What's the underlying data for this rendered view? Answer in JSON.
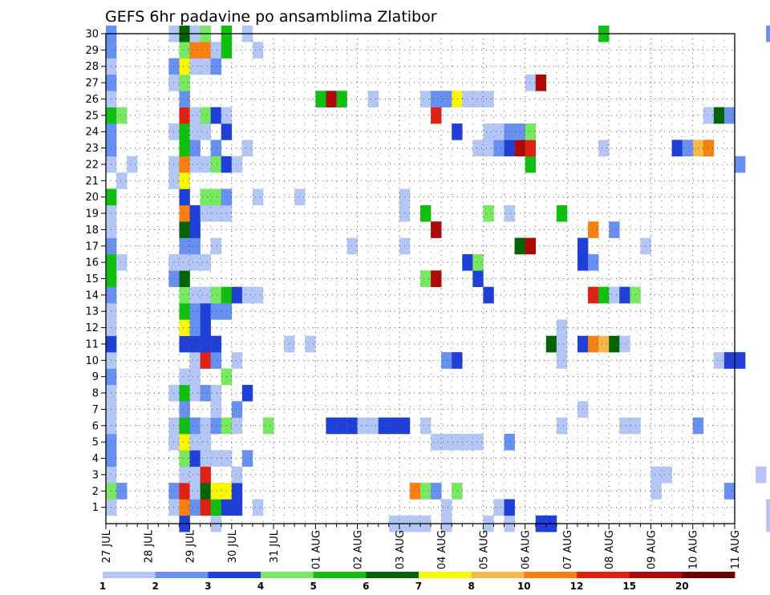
{
  "chart_data": {
    "type": "heatmap",
    "title": "GEFS 6hr padavine po ansamblima Zlatibor",
    "xlabel": "",
    "ylabel": "",
    "x_tick_labels": [
      "27 JUL",
      "28 JUL",
      "29 JUL",
      "30 JUL",
      "31 JUL",
      "01 AUG",
      "02 AUG",
      "03 AUG",
      "04 AUG",
      "05 AUG",
      "06 AUG",
      "07 AUG",
      "08 AUG",
      "09 AUG",
      "10 AUG",
      "11 AUG"
    ],
    "y_tick_labels": [
      "1",
      "2",
      "3",
      "4",
      "5",
      "6",
      "7",
      "8",
      "9",
      "10",
      "11",
      "12",
      "13",
      "14",
      "15",
      "16",
      "17",
      "18",
      "19",
      "20",
      "21",
      "22",
      "23",
      "24",
      "25",
      "26",
      "27",
      "28",
      "29",
      "30"
    ],
    "x_range": [
      "27 JUL 00",
      "11 AUG 00"
    ],
    "y_range": [
      0,
      30
    ],
    "time_step_hours": 6,
    "grid": "dotted",
    "colorbar": {
      "position": "bottom",
      "labels": [
        "1",
        "2",
        "3",
        "4",
        "5",
        "6",
        "7",
        "8",
        "10",
        "12",
        "15",
        "20"
      ],
      "colors": [
        "#b4c6f6",
        "#6890f0",
        "#1e3fd8",
        "#78e860",
        "#10c010",
        "#046404",
        "#f8f800",
        "#f8b848",
        "#f88010",
        "#e02010",
        "#b00808",
        "#700000"
      ]
    },
    "cells": [
      [
        0,
        1,
        1
      ],
      [
        0,
        2,
        4
      ],
      [
        0,
        3,
        1
      ],
      [
        0,
        4,
        2
      ],
      [
        0,
        5,
        2
      ],
      [
        0,
        6,
        1
      ],
      [
        0,
        7,
        1
      ],
      [
        0,
        8,
        1
      ],
      [
        0,
        9,
        2
      ],
      [
        0,
        10,
        1
      ],
      [
        0,
        11,
        3
      ],
      [
        0,
        12,
        1
      ],
      [
        0,
        13,
        1
      ],
      [
        0,
        14,
        2
      ],
      [
        0,
        15,
        5
      ],
      [
        0,
        16,
        5
      ],
      [
        0,
        17,
        2
      ],
      [
        0,
        18,
        1
      ],
      [
        0,
        19,
        1
      ],
      [
        0,
        20,
        5
      ],
      [
        0,
        22,
        1
      ],
      [
        0,
        23,
        2
      ],
      [
        0,
        24,
        2
      ],
      [
        0,
        25,
        5
      ],
      [
        0,
        26,
        1
      ],
      [
        0,
        27,
        2
      ],
      [
        0,
        28,
        1
      ],
      [
        0,
        29,
        2
      ],
      [
        0,
        30,
        2
      ],
      [
        1,
        2,
        2
      ],
      [
        1,
        16,
        1
      ],
      [
        1,
        21,
        1
      ],
      [
        1,
        25,
        4
      ],
      [
        2,
        22,
        1
      ],
      [
        6,
        30,
        1
      ],
      [
        6,
        28,
        2
      ],
      [
        6,
        27,
        1
      ],
      [
        6,
        24,
        1
      ],
      [
        6,
        22,
        1
      ],
      [
        6,
        21,
        1
      ],
      [
        6,
        15,
        2
      ],
      [
        6,
        16,
        1
      ],
      [
        6,
        8,
        1
      ],
      [
        6,
        6,
        1
      ],
      [
        6,
        5,
        1
      ],
      [
        6,
        2,
        2
      ],
      [
        6,
        1,
        1
      ],
      [
        7,
        0,
        3
      ],
      [
        7,
        1,
        10
      ],
      [
        7,
        2,
        13
      ],
      [
        7,
        3,
        1
      ],
      [
        7,
        4,
        4
      ],
      [
        7,
        5,
        7
      ],
      [
        7,
        6,
        5
      ],
      [
        7,
        7,
        2
      ],
      [
        7,
        8,
        5
      ],
      [
        7,
        9,
        1
      ],
      [
        7,
        11,
        3
      ],
      [
        7,
        12,
        7
      ],
      [
        7,
        13,
        5
      ],
      [
        7,
        14,
        4
      ],
      [
        7,
        15,
        6
      ],
      [
        7,
        16,
        1
      ],
      [
        7,
        17,
        2
      ],
      [
        7,
        18,
        6
      ],
      [
        7,
        19,
        10
      ],
      [
        7,
        20,
        3
      ],
      [
        7,
        21,
        7
      ],
      [
        7,
        22,
        10
      ],
      [
        7,
        23,
        5
      ],
      [
        7,
        24,
        5
      ],
      [
        7,
        25,
        13
      ],
      [
        7,
        26,
        2
      ],
      [
        7,
        27,
        4
      ],
      [
        7,
        28,
        7
      ],
      [
        7,
        29,
        4
      ],
      [
        7,
        30,
        6
      ],
      [
        8,
        1,
        2
      ],
      [
        8,
        2,
        1
      ],
      [
        8,
        3,
        1
      ],
      [
        8,
        4,
        3
      ],
      [
        8,
        5,
        1
      ],
      [
        8,
        6,
        2
      ],
      [
        8,
        8,
        1
      ],
      [
        8,
        9,
        1
      ],
      [
        8,
        10,
        1
      ],
      [
        8,
        11,
        3
      ],
      [
        8,
        12,
        2
      ],
      [
        8,
        13,
        2
      ],
      [
        8,
        14,
        1
      ],
      [
        8,
        16,
        1
      ],
      [
        8,
        17,
        2
      ],
      [
        8,
        18,
        3
      ],
      [
        8,
        19,
        3
      ],
      [
        8,
        22,
        1
      ],
      [
        8,
        23,
        2
      ],
      [
        8,
        24,
        1
      ],
      [
        8,
        25,
        1
      ],
      [
        8,
        28,
        1
      ],
      [
        8,
        29,
        10
      ],
      [
        8,
        30,
        1
      ],
      [
        9,
        1,
        12
      ],
      [
        9,
        2,
        6
      ],
      [
        9,
        3,
        13
      ],
      [
        9,
        4,
        1
      ],
      [
        9,
        5,
        1
      ],
      [
        9,
        6,
        1
      ],
      [
        9,
        8,
        2
      ],
      [
        9,
        10,
        12
      ],
      [
        9,
        11,
        3
      ],
      [
        9,
        12,
        3
      ],
      [
        9,
        13,
        3
      ],
      [
        9,
        14,
        1
      ],
      [
        9,
        16,
        1
      ],
      [
        9,
        19,
        1
      ],
      [
        9,
        20,
        4
      ],
      [
        9,
        22,
        1
      ],
      [
        9,
        24,
        1
      ],
      [
        9,
        25,
        4
      ],
      [
        9,
        28,
        1
      ],
      [
        9,
        29,
        10
      ],
      [
        9,
        30,
        4
      ],
      [
        10,
        0,
        1
      ],
      [
        10,
        1,
        5
      ],
      [
        10,
        2,
        7
      ],
      [
        10,
        4,
        1
      ],
      [
        10,
        6,
        2
      ],
      [
        10,
        7,
        1
      ],
      [
        10,
        8,
        1
      ],
      [
        10,
        10,
        2
      ],
      [
        10,
        11,
        3
      ],
      [
        10,
        13,
        2
      ],
      [
        10,
        14,
        4
      ],
      [
        10,
        17,
        1
      ],
      [
        10,
        19,
        1
      ],
      [
        10,
        20,
        4
      ],
      [
        10,
        22,
        4
      ],
      [
        10,
        23,
        2
      ],
      [
        10,
        25,
        3
      ],
      [
        10,
        28,
        2
      ],
      [
        10,
        29,
        1
      ],
      [
        11,
        1,
        3
      ],
      [
        11,
        2,
        7
      ],
      [
        11,
        4,
        1
      ],
      [
        11,
        6,
        4
      ],
      [
        11,
        9,
        4
      ],
      [
        11,
        13,
        2
      ],
      [
        11,
        14,
        5
      ],
      [
        11,
        19,
        1
      ],
      [
        11,
        20,
        2
      ],
      [
        11,
        22,
        3
      ],
      [
        11,
        24,
        3
      ],
      [
        11,
        25,
        1
      ],
      [
        11,
        29,
        5
      ],
      [
        11,
        30,
        5
      ],
      [
        12,
        1,
        3
      ],
      [
        12,
        2,
        3
      ],
      [
        12,
        3,
        1
      ],
      [
        12,
        6,
        1
      ],
      [
        12,
        7,
        2
      ],
      [
        12,
        10,
        1
      ],
      [
        12,
        14,
        3
      ],
      [
        12,
        22,
        1
      ],
      [
        13,
        4,
        2
      ],
      [
        13,
        8,
        3
      ],
      [
        13,
        14,
        1
      ],
      [
        13,
        23,
        1
      ],
      [
        13,
        30,
        1
      ],
      [
        14,
        1,
        1
      ],
      [
        14,
        14,
        1
      ],
      [
        14,
        20,
        1
      ],
      [
        14,
        29,
        1
      ],
      [
        15,
        6,
        4
      ],
      [
        17,
        11,
        1
      ],
      [
        18,
        20,
        1
      ],
      [
        19,
        11,
        1
      ],
      [
        20,
        26,
        5
      ],
      [
        21,
        6,
        3
      ],
      [
        21,
        26,
        15
      ],
      [
        22,
        6,
        3
      ],
      [
        22,
        26,
        5
      ],
      [
        23,
        6,
        3
      ],
      [
        23,
        17,
        1
      ],
      [
        24,
        6,
        1
      ],
      [
        25,
        6,
        1
      ],
      [
        25,
        26,
        1
      ],
      [
        26,
        6,
        3
      ],
      [
        27,
        6,
        3
      ],
      [
        27,
        0,
        1
      ],
      [
        28,
        6,
        3
      ],
      [
        28,
        0,
        1
      ],
      [
        28,
        17,
        1
      ],
      [
        28,
        19,
        1
      ],
      [
        28,
        20,
        1
      ],
      [
        29,
        0,
        1
      ],
      [
        29,
        2,
        10
      ],
      [
        30,
        0,
        1
      ],
      [
        30,
        2,
        4
      ],
      [
        30,
        6,
        1
      ],
      [
        30,
        15,
        4
      ],
      [
        30,
        19,
        5
      ],
      [
        30,
        26,
        1
      ],
      [
        31,
        2,
        2
      ],
      [
        31,
        5,
        1
      ],
      [
        31,
        15,
        15
      ],
      [
        31,
        18,
        15
      ],
      [
        31,
        25,
        12
      ],
      [
        31,
        26,
        2
      ],
      [
        32,
        0,
        1
      ],
      [
        32,
        1,
        1
      ],
      [
        32,
        5,
        1
      ],
      [
        32,
        10,
        2
      ],
      [
        32,
        26,
        2
      ],
      [
        33,
        2,
        4
      ],
      [
        33,
        5,
        1
      ],
      [
        33,
        10,
        3
      ],
      [
        33,
        24,
        3
      ],
      [
        33,
        26,
        7
      ],
      [
        34,
        5,
        1
      ],
      [
        34,
        16,
        3
      ],
      [
        34,
        26,
        1
      ],
      [
        35,
        5,
        1
      ],
      [
        35,
        15,
        3
      ],
      [
        35,
        16,
        4
      ],
      [
        35,
        23,
        1
      ],
      [
        35,
        26,
        1
      ],
      [
        36,
        0,
        1
      ],
      [
        36,
        14,
        3
      ],
      [
        36,
        19,
        4
      ],
      [
        36,
        23,
        1
      ],
      [
        36,
        24,
        1
      ],
      [
        36,
        26,
        1
      ],
      [
        37,
        1,
        1
      ],
      [
        37,
        23,
        2
      ],
      [
        37,
        24,
        1
      ],
      [
        38,
        0,
        1
      ],
      [
        38,
        1,
        3
      ],
      [
        38,
        5,
        2
      ],
      [
        38,
        19,
        1
      ],
      [
        38,
        23,
        3
      ],
      [
        38,
        24,
        2
      ],
      [
        39,
        17,
        6
      ],
      [
        39,
        23,
        15
      ],
      [
        39,
        24,
        2
      ],
      [
        40,
        17,
        15
      ],
      [
        40,
        22,
        5
      ],
      [
        40,
        23,
        13
      ],
      [
        40,
        24,
        4
      ],
      [
        40,
        27,
        1
      ],
      [
        41,
        0,
        3
      ],
      [
        41,
        27,
        15
      ],
      [
        42,
        0,
        3
      ],
      [
        42,
        11,
        6
      ],
      [
        43,
        6,
        1
      ],
      [
        43,
        10,
        1
      ],
      [
        43,
        11,
        1
      ],
      [
        43,
        12,
        1
      ],
      [
        43,
        19,
        5
      ],
      [
        45,
        7,
        1
      ],
      [
        45,
        11,
        3
      ],
      [
        45,
        16,
        3
      ],
      [
        45,
        17,
        3
      ],
      [
        46,
        11,
        10
      ],
      [
        46,
        14,
        13
      ],
      [
        46,
        16,
        2
      ],
      [
        46,
        18,
        10
      ],
      [
        47,
        11,
        8
      ],
      [
        47,
        14,
        5
      ],
      [
        47,
        23,
        1
      ],
      [
        47,
        30,
        5
      ],
      [
        48,
        11,
        6
      ],
      [
        48,
        14,
        1
      ],
      [
        48,
        18,
        2
      ],
      [
        49,
        6,
        1
      ],
      [
        49,
        11,
        1
      ],
      [
        49,
        14,
        3
      ],
      [
        50,
        6,
        1
      ],
      [
        50,
        14,
        4
      ],
      [
        51,
        17,
        1
      ],
      [
        52,
        2,
        1
      ],
      [
        52,
        3,
        1
      ],
      [
        53,
        3,
        1
      ],
      [
        54,
        23,
        3
      ],
      [
        55,
        23,
        2
      ],
      [
        56,
        6,
        2
      ],
      [
        56,
        23,
        8
      ],
      [
        57,
        23,
        10
      ],
      [
        57,
        25,
        1
      ],
      [
        58,
        10,
        1
      ],
      [
        58,
        25,
        6
      ],
      [
        59,
        2,
        2
      ],
      [
        59,
        10,
        3
      ],
      [
        59,
        25,
        2
      ],
      [
        60,
        10,
        3
      ],
      [
        60,
        22,
        2
      ],
      [
        62,
        3,
        1
      ],
      [
        63,
        0,
        1
      ],
      [
        63,
        1,
        1
      ],
      [
        63,
        30,
        2
      ],
      [
        64,
        10,
        2
      ],
      [
        64,
        12,
        2
      ],
      [
        64,
        20,
        5
      ],
      [
        64,
        30,
        1
      ],
      [
        65,
        12,
        1
      ],
      [
        65,
        20,
        1
      ],
      [
        66,
        12,
        2
      ],
      [
        67,
        2,
        1
      ],
      [
        67,
        12,
        1
      ],
      [
        69,
        4,
        1
      ],
      [
        69,
        10,
        1
      ],
      [
        69,
        22,
        1
      ],
      [
        70,
        12,
        5
      ],
      [
        71,
        20,
        14
      ],
      [
        72,
        20,
        12
      ],
      [
        73,
        0,
        2
      ]
    ]
  }
}
